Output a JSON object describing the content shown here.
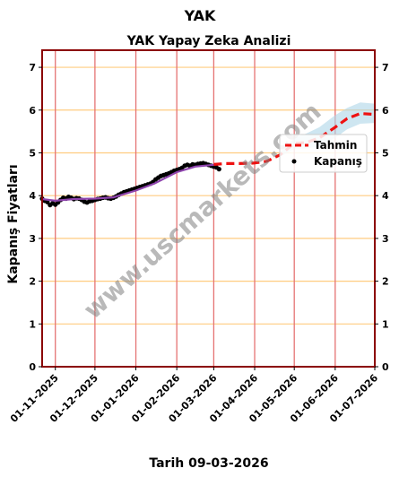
{
  "chart_data": {
    "type": "line",
    "title": "YAK",
    "subtitle": "YAK Yapay Zeka Analizi",
    "ylabel": "Kapanış Fiyatları",
    "xlabel": "Tarih 09-03-2026",
    "ylim": [
      0,
      7.4
    ],
    "yticks": [
      0,
      1,
      2,
      3,
      4,
      5,
      6,
      7
    ],
    "xlim": [
      "2025-10-22",
      "2026-07-01"
    ],
    "xticks": [
      "2025-11-01",
      "2025-12-01",
      "2026-01-01",
      "2026-02-01",
      "2026-03-01",
      "2026-04-01",
      "2026-05-01",
      "2026-06-01",
      "2026-07-01"
    ],
    "xtick_labels": [
      "01-11-2025",
      "01-12-2025",
      "01-01-2026",
      "01-02-2026",
      "01-03-2026",
      "01-04-2026",
      "01-05-2026",
      "01-06-2026",
      "01-07-2026"
    ],
    "grid": true,
    "legend_position": "right",
    "watermark": "www.uscmarkets.com",
    "series": [
      {
        "name": "Kapanış",
        "style": "points",
        "color": "#000000",
        "points": [
          [
            "2025-10-22",
            3.93
          ],
          [
            "2025-10-24",
            3.88
          ],
          [
            "2025-10-26",
            3.85
          ],
          [
            "2025-10-28",
            3.78
          ],
          [
            "2025-10-30",
            3.82
          ],
          [
            "2025-11-01",
            3.79
          ],
          [
            "2025-11-03",
            3.84
          ],
          [
            "2025-11-05",
            3.9
          ],
          [
            "2025-11-07",
            3.95
          ],
          [
            "2025-11-09",
            3.93
          ],
          [
            "2025-11-11",
            3.97
          ],
          [
            "2025-11-13",
            3.95
          ],
          [
            "2025-11-15",
            3.92
          ],
          [
            "2025-11-17",
            3.94
          ],
          [
            "2025-11-19",
            3.93
          ],
          [
            "2025-11-21",
            3.9
          ],
          [
            "2025-11-23",
            3.86
          ],
          [
            "2025-11-25",
            3.84
          ],
          [
            "2025-11-27",
            3.87
          ],
          [
            "2025-11-29",
            3.88
          ],
          [
            "2025-12-01",
            3.9
          ],
          [
            "2025-12-03",
            3.92
          ],
          [
            "2025-12-05",
            3.93
          ],
          [
            "2025-12-07",
            3.95
          ],
          [
            "2025-12-09",
            3.96
          ],
          [
            "2025-12-11",
            3.94
          ],
          [
            "2025-12-13",
            3.93
          ],
          [
            "2025-12-15",
            3.95
          ],
          [
            "2025-12-17",
            3.98
          ],
          [
            "2025-12-19",
            4.02
          ],
          [
            "2025-12-21",
            4.05
          ],
          [
            "2025-12-23",
            4.08
          ],
          [
            "2025-12-25",
            4.1
          ],
          [
            "2025-12-27",
            4.12
          ],
          [
            "2025-12-29",
            4.14
          ],
          [
            "2025-12-31",
            4.16
          ],
          [
            "2026-01-02",
            4.18
          ],
          [
            "2026-01-04",
            4.2
          ],
          [
            "2026-01-06",
            4.22
          ],
          [
            "2026-01-08",
            4.24
          ],
          [
            "2026-01-10",
            4.26
          ],
          [
            "2026-01-12",
            4.28
          ],
          [
            "2026-01-14",
            4.32
          ],
          [
            "2026-01-16",
            4.38
          ],
          [
            "2026-01-18",
            4.42
          ],
          [
            "2026-01-20",
            4.46
          ],
          [
            "2026-01-22",
            4.48
          ],
          [
            "2026-01-24",
            4.5
          ],
          [
            "2026-01-26",
            4.52
          ],
          [
            "2026-01-28",
            4.55
          ],
          [
            "2026-01-30",
            4.58
          ],
          [
            "2026-02-01",
            4.6
          ],
          [
            "2026-02-03",
            4.62
          ],
          [
            "2026-02-05",
            4.65
          ],
          [
            "2026-02-07",
            4.7
          ],
          [
            "2026-02-09",
            4.72
          ],
          [
            "2026-02-11",
            4.7
          ],
          [
            "2026-02-13",
            4.73
          ],
          [
            "2026-02-15",
            4.72
          ],
          [
            "2026-02-17",
            4.74
          ],
          [
            "2026-02-19",
            4.75
          ],
          [
            "2026-02-21",
            4.76
          ],
          [
            "2026-02-23",
            4.74
          ],
          [
            "2026-02-25",
            4.72
          ],
          [
            "2026-02-27",
            4.7
          ],
          [
            "2026-03-01",
            4.68
          ],
          [
            "2026-03-03",
            4.66
          ],
          [
            "2026-03-05",
            4.62
          ]
        ]
      },
      {
        "name": "",
        "style": "line",
        "color": "#8e44ad",
        "points": [
          [
            "2025-10-22",
            3.92
          ],
          [
            "2025-11-01",
            3.88
          ],
          [
            "2025-11-15",
            3.92
          ],
          [
            "2025-12-01",
            3.93
          ],
          [
            "2025-12-15",
            3.96
          ],
          [
            "2026-01-01",
            4.12
          ],
          [
            "2026-01-15",
            4.28
          ],
          [
            "2026-02-01",
            4.55
          ],
          [
            "2026-02-15",
            4.68
          ],
          [
            "2026-03-01",
            4.72
          ]
        ]
      },
      {
        "name": "Tahmin",
        "style": "dashed",
        "color": "#ee1111",
        "points": [
          [
            "2026-03-01",
            4.73
          ],
          [
            "2026-03-10",
            4.75
          ],
          [
            "2026-03-20",
            4.75
          ],
          [
            "2026-03-31",
            4.76
          ],
          [
            "2026-04-10",
            4.8
          ],
          [
            "2026-04-20",
            4.95
          ],
          [
            "2026-05-01",
            5.22
          ],
          [
            "2026-05-10",
            5.24
          ],
          [
            "2026-05-20",
            5.35
          ],
          [
            "2026-06-01",
            5.6
          ],
          [
            "2026-06-10",
            5.8
          ],
          [
            "2026-06-20",
            5.92
          ],
          [
            "2026-07-01",
            5.9
          ]
        ]
      }
    ],
    "band": {
      "color": "#aed6e8",
      "upper": [
        [
          "2026-04-20",
          5.0
        ],
        [
          "2026-05-01",
          5.35
        ],
        [
          "2026-05-10",
          5.45
        ],
        [
          "2026-05-20",
          5.6
        ],
        [
          "2026-06-01",
          5.88
        ],
        [
          "2026-06-10",
          6.05
        ],
        [
          "2026-06-20",
          6.18
        ],
        [
          "2026-07-01",
          6.15
        ]
      ],
      "lower": [
        [
          "2026-04-20",
          4.9
        ],
        [
          "2026-05-01",
          5.1
        ],
        [
          "2026-05-10",
          5.1
        ],
        [
          "2026-05-20",
          5.15
        ],
        [
          "2026-06-01",
          5.35
        ],
        [
          "2026-06-10",
          5.55
        ],
        [
          "2026-06-20",
          5.68
        ],
        [
          "2026-07-01",
          5.7
        ]
      ]
    },
    "colors": {
      "frame": "#8b0000",
      "hgrid": "#ffcc80",
      "vgrid": "#e57373"
    }
  }
}
